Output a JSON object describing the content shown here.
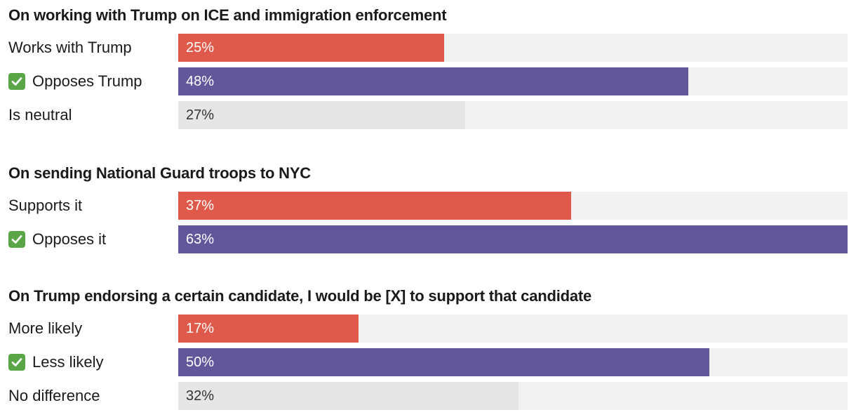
{
  "colors": {
    "red": "#e05a4b",
    "purple": "#63579c",
    "gray": "#e6e6e6",
    "track": "#f2f2f2",
    "white_text": "#ffffff",
    "dark_text": "#333333",
    "check_green": "#5aa646"
  },
  "chart_data": [
    {
      "type": "bar",
      "orientation": "horizontal",
      "title": "On working with Trump on ICE and immigration enforcement",
      "xlim": [
        0,
        63
      ],
      "categories": [
        {
          "label": "Works with Trump",
          "value": 25,
          "value_label": "25%",
          "color": "red",
          "checked": false
        },
        {
          "label": "Opposes Trump",
          "value": 48,
          "value_label": "48%",
          "color": "purple",
          "checked": true
        },
        {
          "label": "Is neutral",
          "value": 27,
          "value_label": "27%",
          "color": "gray",
          "checked": false
        }
      ]
    },
    {
      "type": "bar",
      "orientation": "horizontal",
      "title": "On sending National Guard troops to NYC",
      "xlim": [
        0,
        63
      ],
      "categories": [
        {
          "label": "Supports it",
          "value": 37,
          "value_label": "37%",
          "color": "red",
          "checked": false
        },
        {
          "label": "Opposes it",
          "value": 63,
          "value_label": "63%",
          "color": "purple",
          "checked": true
        }
      ]
    },
    {
      "type": "bar",
      "orientation": "horizontal",
      "title": "On Trump endorsing a certain candidate, I would be [X] to support that candidate",
      "xlim": [
        0,
        63
      ],
      "categories": [
        {
          "label": "More likely",
          "value": 17,
          "value_label": "17%",
          "color": "red",
          "checked": false
        },
        {
          "label": "Less likely",
          "value": 50,
          "value_label": "50%",
          "color": "purple",
          "checked": true
        },
        {
          "label": "No difference",
          "value": 32,
          "value_label": "32%",
          "color": "gray",
          "checked": false
        }
      ]
    }
  ]
}
